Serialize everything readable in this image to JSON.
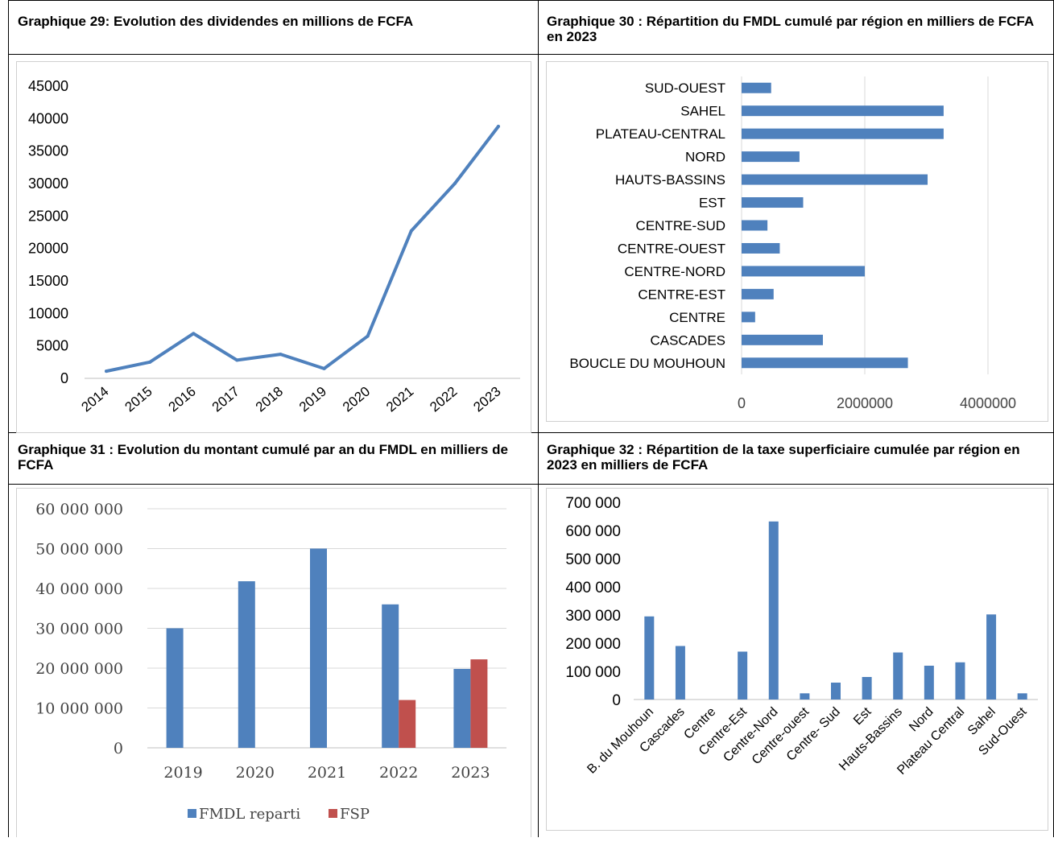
{
  "colors": {
    "blue": "#4f81bd",
    "red": "#c0504d",
    "grid": "#d9d9d9",
    "axis": "#bfbfbf"
  },
  "chart_data": [
    {
      "id": "g29",
      "type": "line",
      "title": "Graphique 29: Evolution des dividendes en millions de FCFA",
      "categories": [
        "2014",
        "2015",
        "2016",
        "2017",
        "2018",
        "2019",
        "2020",
        "2021",
        "2022",
        "2023"
      ],
      "series": [
        {
          "values": [
            1100,
            2500,
            6900,
            2800,
            3700,
            1500,
            6500,
            22700,
            30000,
            38800
          ]
        }
      ],
      "ylim": [
        0,
        45000
      ],
      "yticks": [
        "0",
        "5000",
        "10000",
        "15000",
        "20000",
        "25000",
        "30000",
        "35000",
        "40000",
        "45000"
      ],
      "grid": false,
      "xlabel": "",
      "ylabel": ""
    },
    {
      "id": "g30",
      "type": "bar",
      "orientation": "horizontal",
      "title": "Graphique 30 : Répartition du FMDL cumulé par région en milliers de FCFA en 2023",
      "categories": [
        "SUD-OUEST",
        "SAHEL ",
        "PLATEAU-CENTRAL",
        "NORD",
        "HAUTS-BASSINS",
        "EST",
        "CENTRE-SUD",
        "CENTRE-OUEST",
        "CENTRE-NORD",
        "CENTRE-EST",
        "CENTRE",
        "CASCADES",
        "BOUCLE DU MOUHOUN"
      ],
      "values": [
        480000,
        3280000,
        3280000,
        940000,
        3020000,
        1000000,
        420000,
        620000,
        2000000,
        520000,
        220000,
        1320000,
        2700000
      ],
      "xlim": [
        0,
        4000000
      ],
      "xticks": [
        "0",
        "2000000",
        "4000000"
      ],
      "grid": true,
      "xlabel": "",
      "ylabel": ""
    },
    {
      "id": "g31",
      "type": "bar",
      "title": "Graphique 31 : Evolution du montant cumulé par an du FMDL en milliers de FCFA",
      "categories": [
        "2019",
        "2020",
        "2021",
        "2022",
        "2023"
      ],
      "series": [
        {
          "name": "FMDL reparti",
          "values": [
            30000000,
            41800000,
            50000000,
            36000000,
            19800000
          ]
        },
        {
          "name": "FSP",
          "values": [
            0,
            0,
            0,
            12000000,
            22200000
          ]
        }
      ],
      "ylim": [
        0,
        60000000
      ],
      "yticks": [
        "0",
        "10 000 000",
        "20 000 000",
        "30 000 000",
        "40 000 000",
        "50 000 000",
        "60 000 000"
      ],
      "grid": true,
      "legend": "bottom",
      "xlabel": "",
      "ylabel": ""
    },
    {
      "id": "g32",
      "type": "bar",
      "title": "Graphique 32 : Répartition de la taxe superficiaire cumulée par région en 2023 en milliers de FCFA",
      "categories": [
        "B. du Mouhoun",
        "Cascades",
        "Centre",
        "Centre-Est",
        "Centre-Nord",
        "Centre-ouest",
        "Centre- Sud",
        "Est",
        "Hauts-Bassins",
        "Nord",
        "Plateau Central",
        "Sahel",
        "Sud-Ouest"
      ],
      "values": [
        295000,
        190000,
        0,
        170000,
        632000,
        22000,
        60000,
        80000,
        167000,
        120000,
        132000,
        302000,
        22000
      ],
      "ylim": [
        0,
        700000
      ],
      "yticks": [
        "0",
        "100 000",
        "200 000",
        "300 000",
        "400 000",
        "500 000",
        "600 000",
        "700 000"
      ],
      "grid": false,
      "xlabel": "",
      "ylabel": ""
    }
  ]
}
